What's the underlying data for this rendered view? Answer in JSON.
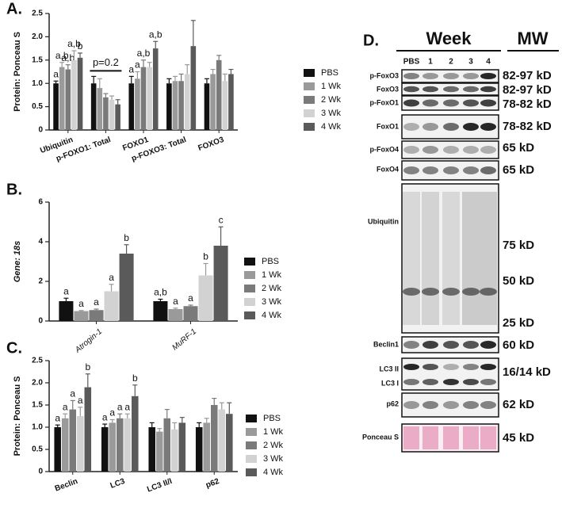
{
  "chart_data": [
    {
      "type": "bar",
      "title": "A.",
      "ylabel": "Protein: Ponceau S",
      "categories": [
        "Ubiquitin",
        "p-FOXO1: Total",
        "FOXO1",
        "p-FOXO3: Total",
        "FOXO3"
      ],
      "ylim": [
        0,
        2.5
      ],
      "yticks": [
        0,
        0.5,
        {
          "value": 1,
          "label": "1.0"
        },
        1.5,
        {
          "value": 2,
          "label": "2.0"
        },
        2.5
      ],
      "note": "p=0.2",
      "legend": "right",
      "series": [
        {
          "name": "PBS",
          "color": "#111111",
          "values": [
            1.0,
            1.0,
            1.0,
            1.0,
            1.0
          ],
          "errors": [
            0.05,
            0.15,
            0.15,
            0.1,
            0.1
          ],
          "letters": [
            "a",
            null,
            "a",
            null,
            null
          ]
        },
        {
          "name": "1 Wk",
          "color": "#9a9a9a",
          "values": [
            1.35,
            0.9,
            1.1,
            1.05,
            1.2
          ],
          "errors": [
            0.1,
            0.2,
            0.15,
            0.1,
            0.1
          ],
          "letters": [
            "a,b",
            null,
            "a",
            null,
            null
          ]
        },
        {
          "name": "2 Wk",
          "color": "#7a7a7a",
          "values": [
            1.3,
            0.7,
            1.35,
            1.05,
            1.5
          ],
          "errors": [
            0.1,
            0.08,
            0.15,
            0.15,
            0.1
          ],
          "letters": [
            "a,b",
            null,
            "a,b",
            null,
            null
          ]
        },
        {
          "name": "3 Wk",
          "color": "#d2d2d2",
          "values": [
            1.5,
            0.65,
            1.35,
            1.2,
            1.05
          ],
          "errors": [
            0.2,
            0.08,
            0.1,
            0.2,
            0.15
          ],
          "letters": [
            "a,b",
            null,
            null,
            null,
            null
          ]
        },
        {
          "name": "4 Wk",
          "color": "#5a5a5a",
          "values": [
            1.55,
            0.55,
            1.75,
            1.8,
            1.2
          ],
          "errors": [
            0.1,
            0.1,
            0.15,
            0.55,
            0.1
          ],
          "letters": [
            "b",
            null,
            "a,b",
            null,
            null
          ]
        }
      ]
    },
    {
      "type": "bar",
      "title": "B.",
      "ylabel": "Gene: 18s",
      "categories": [
        "Atrogin-1",
        "MuRF-1"
      ],
      "ylim": [
        0,
        6
      ],
      "yticks": [
        0,
        2,
        4,
        6
      ],
      "legend": "right",
      "series": [
        {
          "name": "PBS",
          "color": "#111111",
          "values": [
            1.0,
            1.0
          ],
          "errors": [
            0.15,
            0.1
          ],
          "letters": [
            "a",
            "a,b"
          ]
        },
        {
          "name": "1 Wk",
          "color": "#9a9a9a",
          "values": [
            0.5,
            0.6
          ],
          "errors": [
            0.03,
            0.05
          ],
          "letters": [
            "a",
            "a"
          ]
        },
        {
          "name": "2 Wk",
          "color": "#7a7a7a",
          "values": [
            0.55,
            0.75
          ],
          "errors": [
            0.05,
            0.05
          ],
          "letters": [
            "a",
            "a"
          ]
        },
        {
          "name": "3 Wk",
          "color": "#d2d2d2",
          "values": [
            1.5,
            2.3
          ],
          "errors": [
            0.35,
            0.6
          ],
          "letters": [
            "a",
            "b"
          ]
        },
        {
          "name": "4 Wk",
          "color": "#5a5a5a",
          "values": [
            3.4,
            3.8
          ],
          "errors": [
            0.45,
            0.95
          ],
          "letters": [
            "b",
            "c"
          ]
        }
      ]
    },
    {
      "type": "bar",
      "title": "C.",
      "ylabel": "Protein: Ponceau S",
      "categories": [
        "Beclin",
        "LC3",
        "LC3 II/I",
        "p62"
      ],
      "ylim": [
        0,
        2.5
      ],
      "yticks": [
        0,
        0.5,
        {
          "value": 1,
          "label": "1.0"
        },
        1.5,
        {
          "value": 2,
          "label": "2.0"
        },
        2.5
      ],
      "legend": "right",
      "series": [
        {
          "name": "PBS",
          "color": "#111111",
          "values": [
            1.0,
            1.0,
            1.0,
            1.0
          ],
          "errors": [
            0.05,
            0.07,
            0.1,
            0.1
          ],
          "letters": [
            "a",
            "a",
            null,
            null
          ]
        },
        {
          "name": "1 Wk",
          "color": "#9a9a9a",
          "values": [
            1.2,
            1.1,
            0.9,
            1.1
          ],
          "errors": [
            0.1,
            0.07,
            0.07,
            0.1
          ],
          "letters": [
            "a",
            "a",
            null,
            null
          ]
        },
        {
          "name": "2 Wk",
          "color": "#7a7a7a",
          "values": [
            1.4,
            1.2,
            1.2,
            1.5
          ],
          "errors": [
            0.2,
            0.1,
            0.2,
            0.15
          ],
          "letters": [
            "a",
            "a",
            null,
            null
          ]
        },
        {
          "name": "3 Wk",
          "color": "#d2d2d2",
          "values": [
            1.25,
            1.2,
            0.95,
            1.4
          ],
          "errors": [
            0.2,
            0.1,
            0.15,
            0.15
          ],
          "letters": [
            "a",
            "a",
            null,
            null
          ]
        },
        {
          "name": "4 Wk",
          "color": "#5a5a5a",
          "values": [
            1.9,
            1.7,
            1.1,
            1.3
          ],
          "errors": [
            0.3,
            0.25,
            0.12,
            0.25
          ],
          "letters": [
            "b",
            "b",
            null,
            null
          ]
        }
      ]
    }
  ],
  "blot": {
    "title": "D.",
    "header": "Week",
    "mw_header": "MW",
    "lanes": [
      "PBS",
      "1",
      "2",
      "3",
      "4"
    ],
    "rows": [
      {
        "labels": [
          "p-FoxO3"
        ],
        "mw": [
          "82-97 kD"
        ]
      },
      {
        "labels": [
          "FoxO3"
        ],
        "mw": [
          "82-97 kD"
        ]
      },
      {
        "labels": [
          "p-FoxO1"
        ],
        "mw": [
          "78-82 kD"
        ]
      },
      {
        "labels": [
          "FoxO1"
        ],
        "mw": [
          "78-82 kD"
        ]
      },
      {
        "labels": [
          "p-FoxO4"
        ],
        "mw": [
          "65 kD"
        ]
      },
      {
        "labels": [
          "FoxO4"
        ],
        "mw": [
          "65 kD"
        ]
      },
      {
        "labels": [
          "Ubiquitin"
        ],
        "mw": [
          "75 kD",
          "50 kD",
          "25 kD"
        ]
      },
      {
        "labels": [
          "Beclin1"
        ],
        "mw": [
          "60 kD"
        ]
      },
      {
        "labels": [
          "LC3 II",
          "LC3 I"
        ],
        "mw": [
          "16/14 kD"
        ]
      },
      {
        "labels": [
          "p62"
        ],
        "mw": [
          "62 kD"
        ]
      },
      {
        "labels": [
          "Ponceau S"
        ],
        "mw": [
          "45 kD"
        ]
      }
    ]
  }
}
